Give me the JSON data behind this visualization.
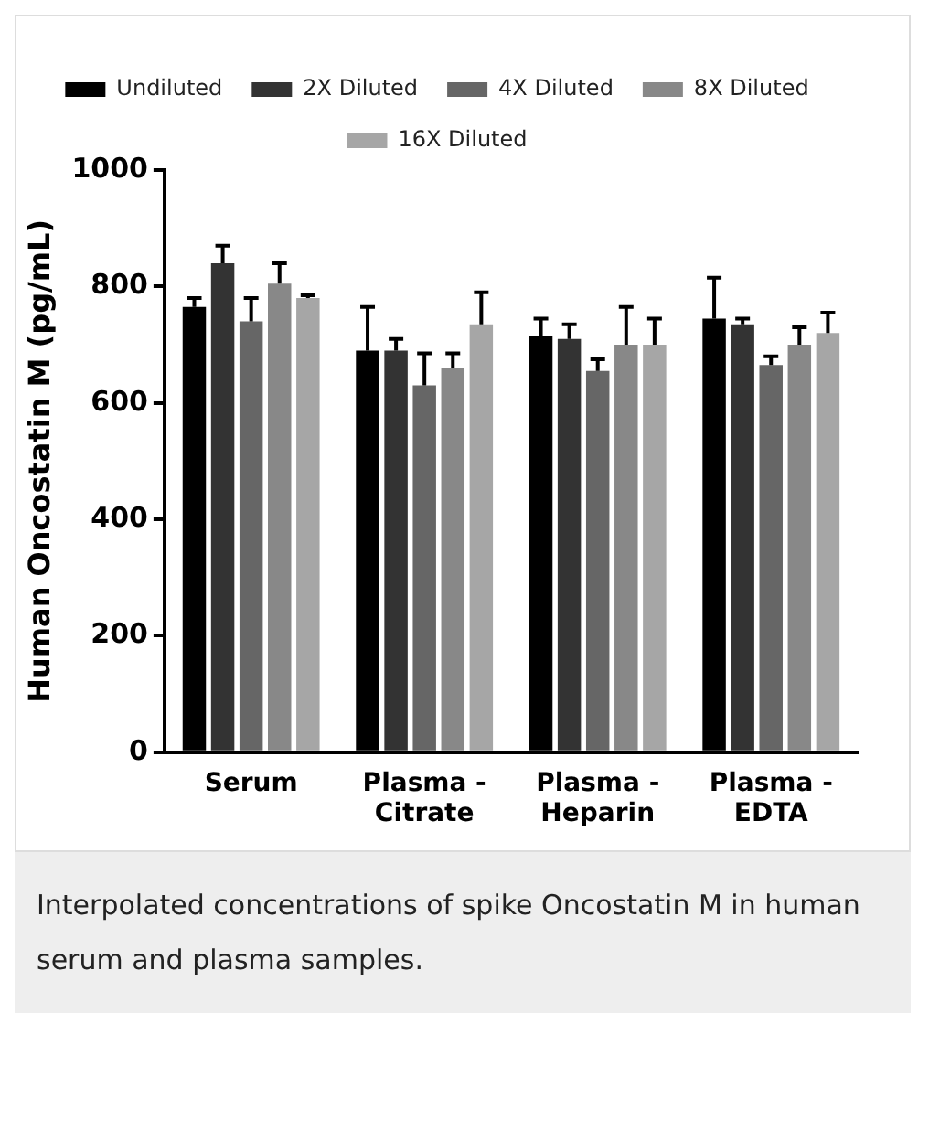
{
  "chart_data": {
    "type": "bar",
    "ylabel": "Human Oncostatin M (pg/mL)",
    "categories": [
      "Serum",
      "Plasma - Citrate",
      "Plasma - Heparin",
      "Plasma - EDTA"
    ],
    "series": [
      {
        "name": "Undiluted",
        "color": "#000000",
        "values": [
          765,
          690,
          715,
          745
        ],
        "errors": [
          [
            765,
            780
          ],
          [
            690,
            765
          ],
          [
            715,
            745
          ],
          [
            745,
            815
          ]
        ]
      },
      {
        "name": "2X Diluted",
        "color": "#333333",
        "values": [
          840,
          690,
          710,
          735
        ],
        "errors": [
          [
            840,
            870
          ],
          [
            690,
            710
          ],
          [
            710,
            735
          ],
          [
            735,
            745
          ]
        ]
      },
      {
        "name": "4X Diluted",
        "color": "#666666",
        "values": [
          740,
          630,
          655,
          665
        ],
        "errors": [
          [
            740,
            780
          ],
          [
            630,
            685
          ],
          [
            655,
            675
          ],
          [
            665,
            680
          ]
        ]
      },
      {
        "name": "8X Diluted",
        "color": "#888888",
        "values": [
          805,
          660,
          700,
          700
        ],
        "errors": [
          [
            805,
            840
          ],
          [
            660,
            685
          ],
          [
            700,
            765
          ],
          [
            700,
            730
          ]
        ]
      },
      {
        "name": "16X Diluted",
        "color": "#a6a6a6",
        "values": [
          780,
          735,
          700,
          720
        ],
        "errors": [
          [
            780,
            785
          ],
          [
            735,
            790
          ],
          [
            700,
            745
          ],
          [
            720,
            755
          ]
        ]
      }
    ],
    "ylim": [
      0,
      1000
    ],
    "yticks": [
      0,
      200,
      400,
      600,
      800,
      1000
    ],
    "grid": false,
    "legend": "top",
    "annotations": [
      "Interpolated concentrations of spike Oncostatin M in human serum and plasma samples."
    ]
  }
}
